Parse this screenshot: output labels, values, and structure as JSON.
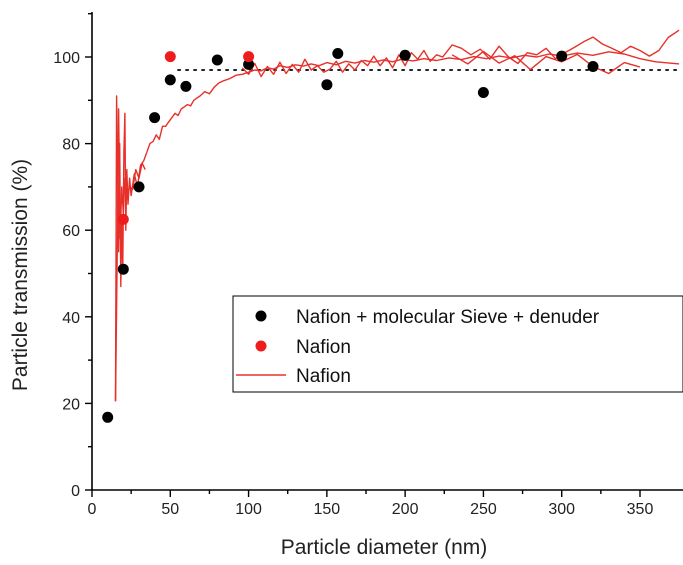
{
  "chart_data": {
    "type": "scatter",
    "xlabel": "Particle diameter (nm)",
    "ylabel": "Particle transmission (%)",
    "xlim": [
      0,
      375
    ],
    "ylim": [
      0,
      110
    ],
    "x_ticks": [
      0,
      50,
      100,
      150,
      200,
      250,
      300,
      350
    ],
    "y_ticks": [
      0,
      20,
      40,
      60,
      80,
      100
    ],
    "reference_line": {
      "y": 97,
      "style": "dotted",
      "x_range": [
        55,
        375
      ]
    },
    "legend_position": "center-right",
    "series": [
      {
        "name": "Nafion + molecular Sieve + denuder",
        "kind": "scatter",
        "color": "#000000",
        "points": [
          [
            10,
            16.8
          ],
          [
            20,
            51
          ],
          [
            30,
            70
          ],
          [
            40,
            86
          ],
          [
            50,
            94.7
          ],
          [
            60,
            93.2
          ],
          [
            80,
            99.3
          ],
          [
            100,
            98.3
          ],
          [
            150,
            93.6
          ],
          [
            157,
            100.8
          ],
          [
            200,
            100.4
          ],
          [
            250,
            91.8
          ],
          [
            300,
            100.2
          ],
          [
            320,
            97.8
          ]
        ]
      },
      {
        "name": "Nafion",
        "kind": "scatter",
        "color": "#ee1c1c",
        "points": [
          [
            20,
            62.5
          ],
          [
            50,
            100.1
          ],
          [
            100,
            100.1
          ]
        ]
      },
      {
        "name": "Nafion",
        "kind": "line",
        "color": "#e8302a",
        "points": [
          [
            15,
            20.5
          ],
          [
            15.7,
            91
          ],
          [
            16.4,
            72
          ],
          [
            17,
            55
          ],
          [
            17.7,
            80
          ],
          [
            18.4,
            47
          ],
          [
            19,
            62
          ],
          [
            19.7,
            52
          ],
          [
            20.4,
            78
          ],
          [
            21,
            87
          ],
          [
            21.6,
            60
          ],
          [
            22.2,
            74
          ],
          [
            23,
            66
          ],
          [
            24,
            72
          ],
          [
            25,
            68
          ],
          [
            27,
            73
          ],
          [
            29,
            70
          ],
          [
            31,
            75
          ],
          [
            33,
            76
          ],
          [
            35,
            78
          ],
          [
            37,
            80
          ],
          [
            39,
            80.5
          ],
          [
            41,
            82
          ],
          [
            43,
            81
          ],
          [
            45,
            84
          ],
          [
            47,
            84
          ],
          [
            49,
            85
          ],
          [
            51,
            86
          ],
          [
            53,
            87
          ],
          [
            55,
            86.5
          ],
          [
            57,
            88
          ],
          [
            59,
            88.5
          ],
          [
            61,
            89
          ],
          [
            63,
            88.7
          ],
          [
            65,
            90
          ],
          [
            67,
            90.5
          ],
          [
            69,
            91
          ],
          [
            72,
            92
          ],
          [
            75,
            91.5
          ],
          [
            78,
            93
          ],
          [
            81,
            94
          ],
          [
            84,
            94.5
          ],
          [
            88,
            95
          ],
          [
            92,
            95.8
          ],
          [
            96,
            96
          ],
          [
            100,
            96.5
          ],
          [
            104,
            97
          ],
          [
            108,
            96.8
          ],
          [
            112,
            97.5
          ],
          [
            116,
            97.2
          ],
          [
            120,
            98
          ],
          [
            125,
            97.6
          ],
          [
            130,
            98.2
          ],
          [
            135,
            97.9
          ],
          [
            140,
            98.4
          ],
          [
            145,
            98
          ],
          [
            150,
            98.7
          ],
          [
            156,
            98.2
          ],
          [
            162,
            99
          ],
          [
            168,
            98.6
          ],
          [
            174,
            99.2
          ],
          [
            180,
            98.8
          ],
          [
            186,
            99.3
          ],
          [
            192,
            98.9
          ],
          [
            198,
            99.5
          ],
          [
            205,
            99.1
          ],
          [
            212,
            99.6
          ],
          [
            220,
            99.2
          ],
          [
            228,
            99.8
          ],
          [
            236,
            99.4
          ],
          [
            244,
            100.1
          ],
          [
            252,
            99.6
          ],
          [
            260,
            100.2
          ],
          [
            268,
            99.8
          ],
          [
            276,
            100.4
          ],
          [
            284,
            100
          ],
          [
            292,
            100.7
          ],
          [
            300,
            100.2
          ],
          [
            310,
            100.9
          ],
          [
            320,
            100.4
          ],
          [
            330,
            101.2
          ],
          [
            340,
            100.7
          ],
          [
            350,
            99.6
          ],
          [
            360,
            98.9
          ],
          [
            375,
            98.4
          ]
        ]
      },
      {
        "name": "Nafion",
        "kind": "line",
        "color": "#e8302a",
        "points": [
          [
            96,
            97.5
          ],
          [
            100,
            96
          ],
          [
            104,
            98.5
          ],
          [
            108,
            95.5
          ],
          [
            112,
            97.8
          ],
          [
            116,
            96
          ],
          [
            120,
            98.8
          ],
          [
            124,
            96.2
          ],
          [
            128,
            98.3
          ],
          [
            132,
            96.5
          ],
          [
            136,
            99.5
          ],
          [
            140,
            97
          ],
          [
            144,
            98
          ],
          [
            148,
            96.5
          ],
          [
            152,
            97.2
          ],
          [
            156,
            99
          ],
          [
            160,
            96.5
          ],
          [
            164,
            98.4
          ],
          [
            168,
            97
          ],
          [
            172,
            99.2
          ],
          [
            176,
            98
          ],
          [
            180,
            100.2
          ],
          [
            184,
            98
          ],
          [
            188,
            99.8
          ],
          [
            192,
            97.5
          ],
          [
            196,
            100.5
          ],
          [
            200,
            98
          ],
          [
            204,
            101
          ],
          [
            208,
            99.5
          ],
          [
            212,
            101.5
          ],
          [
            216,
            99
          ],
          [
            220,
            100.5
          ],
          [
            224,
            100
          ],
          [
            230,
            102.8
          ],
          [
            236,
            102
          ],
          [
            242,
            100.5
          ],
          [
            248,
            101.8
          ],
          [
            254,
            99.5
          ],
          [
            260,
            102.5
          ],
          [
            266,
            100
          ],
          [
            272,
            98.5
          ],
          [
            278,
            101
          ],
          [
            284,
            100.5
          ],
          [
            290,
            102
          ],
          [
            296,
            99.6
          ],
          [
            302,
            101
          ],
          [
            308,
            102.2
          ],
          [
            314,
            103.5
          ],
          [
            320,
            104.6
          ],
          [
            326,
            103
          ],
          [
            332,
            102
          ],
          [
            338,
            101
          ],
          [
            344,
            102.5
          ],
          [
            350,
            101.5
          ],
          [
            356,
            100.2
          ],
          [
            362,
            101.5
          ],
          [
            368,
            104.5
          ],
          [
            375,
            106.2
          ]
        ]
      },
      {
        "name": "Nafion",
        "kind": "line",
        "color": "#e8302a",
        "points": [
          [
            15,
            20.5
          ],
          [
            16,
            52
          ],
          [
            17,
            88
          ],
          [
            18,
            58
          ],
          [
            19,
            70
          ],
          [
            20,
            64
          ],
          [
            21,
            72
          ],
          [
            22,
            67
          ],
          [
            24,
            70
          ],
          [
            26,
            69.5
          ],
          [
            28,
            74
          ],
          [
            30,
            72
          ],
          [
            32,
            75.5
          ],
          [
            34,
            74
          ]
        ]
      },
      {
        "name": "Nafion",
        "kind": "line",
        "color": "#e8302a",
        "points": [
          [
            230,
            100.5
          ],
          [
            240,
            98.4
          ],
          [
            250,
            101.3
          ],
          [
            260,
            98.6
          ],
          [
            270,
            100.3
          ],
          [
            280,
            97.1
          ],
          [
            290,
            100.1
          ],
          [
            300,
            98.9
          ],
          [
            310,
            100.6
          ],
          [
            320,
            97.8
          ],
          [
            330,
            96.2
          ],
          [
            340,
            98.7
          ],
          [
            350,
            97.7
          ]
        ]
      }
    ]
  }
}
